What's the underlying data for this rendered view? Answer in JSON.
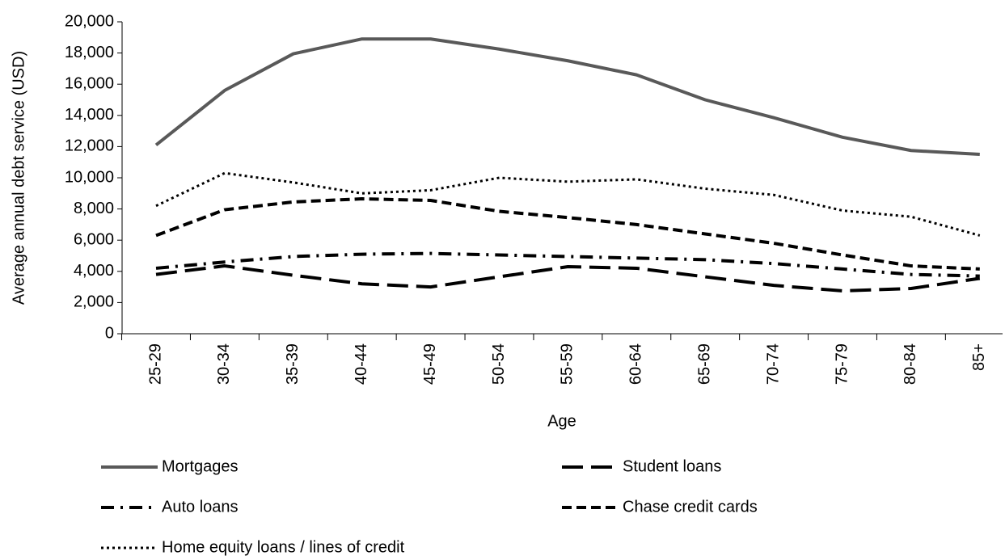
{
  "chart_data": {
    "type": "line",
    "x_label": "Age",
    "y_label": "Average annual debt service (USD)",
    "categories": [
      "25-29",
      "30-34",
      "35-39",
      "40-44",
      "45-49",
      "50-54",
      "55-59",
      "60-64",
      "65-69",
      "70-74",
      "75-79",
      "80-84",
      "85+"
    ],
    "ylim": [
      0,
      20000
    ],
    "yticks": [
      0,
      {
        "value": 2000,
        "label": "2,000"
      },
      {
        "value": 4000,
        "label": "4,000"
      },
      {
        "value": 6000,
        "label": "6,000"
      },
      {
        "value": 8000,
        "label": "8,000"
      },
      {
        "value": 10000,
        "label": "10,000"
      },
      {
        "value": 12000,
        "label": "12,000"
      },
      {
        "value": 14000,
        "label": "14,000"
      },
      {
        "value": 16000,
        "label": "16,000"
      },
      {
        "value": 18000,
        "label": "18,000"
      },
      {
        "value": 20000,
        "label": "20,000"
      }
    ],
    "grid": false,
    "series": [
      {
        "name": "Mortgages",
        "color": "#595959",
        "dash": "solid",
        "values": [
          12100,
          15600,
          17950,
          18900,
          18900,
          18250,
          17500,
          16600,
          15000,
          13850,
          12600,
          11750,
          11500
        ]
      },
      {
        "name": "Student loans",
        "color": "#000000",
        "dash": "long-dash",
        "values": [
          3800,
          4350,
          3750,
          3200,
          3000,
          3650,
          4300,
          4200,
          3650,
          3100,
          2750,
          2900,
          3550
        ]
      },
      {
        "name": "Auto loans",
        "color": "#000000",
        "dash": "dash-dot",
        "values": [
          4200,
          4600,
          4950,
          5100,
          5150,
          5050,
          4950,
          4850,
          4750,
          4500,
          4150,
          3800,
          3700
        ]
      },
      {
        "name": "Chase credit cards",
        "color": "#000000",
        "dash": "dash",
        "values": [
          6300,
          7950,
          8450,
          8650,
          8550,
          7850,
          7450,
          7000,
          6400,
          5800,
          5050,
          4350,
          4150
        ]
      },
      {
        "name": "Home equity loans / lines of credit",
        "color": "#000000",
        "dash": "dot",
        "values": [
          8200,
          10300,
          9700,
          9000,
          9200,
          10000,
          9750,
          9900,
          9300,
          8900,
          7900,
          7500,
          6300
        ]
      }
    ]
  }
}
